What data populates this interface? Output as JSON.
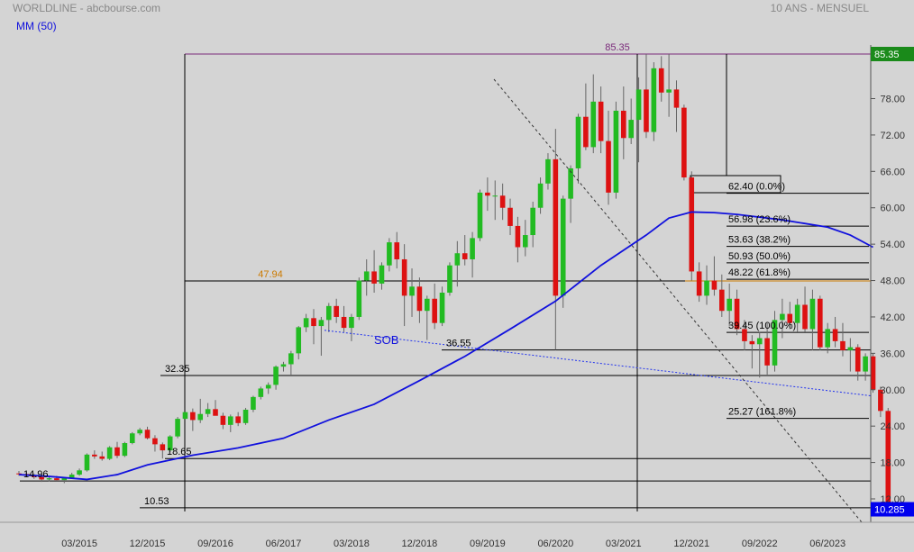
{
  "header": {
    "title": "WORLDLINE - abcbourse.com",
    "period": "10 ANS - MENSUEL",
    "indicator": "MM (50)"
  },
  "colors": {
    "background": "#d4d4d4",
    "up_candle": "#22bb22",
    "down_candle": "#dd1111",
    "moving_average": "#1111dd",
    "last_price_badge": "#0000ee",
    "high_badge": "#1a8a1a",
    "high_line": "#7a2a7a",
    "resistance_label": "#cc7a00"
  },
  "chart_data": {
    "type": "candlestick",
    "title": "WORLDLINE - abcbourse.com",
    "subtitle": "10 ANS - MENSUEL",
    "y_ticks": [
      "12.00",
      "18.00",
      "24.00",
      "30.00",
      "36.00",
      "42.00",
      "48.00",
      "54.00",
      "60.00",
      "66.00",
      "72.00",
      "78.00"
    ],
    "ylim": [
      10.0,
      87.0
    ],
    "x_ticks": [
      "03/2015",
      "12/2015",
      "09/2016",
      "06/2017",
      "03/2018",
      "12/2018",
      "09/2019",
      "06/2020",
      "03/2021",
      "12/2021",
      "09/2022",
      "06/2023"
    ],
    "x_start": "2014-07",
    "x_end": "2023-10",
    "last_price": "10.285",
    "high_price": "85.35",
    "candles": [
      {
        "d": "2014-07",
        "o": 16.2,
        "h": 16.6,
        "l": 15.8,
        "c": 16.1
      },
      {
        "d": "2014-08",
        "o": 16.1,
        "h": 16.4,
        "l": 15.7,
        "c": 15.9
      },
      {
        "d": "2014-09",
        "o": 15.9,
        "h": 16.2,
        "l": 15.3,
        "c": 15.6
      },
      {
        "d": "2014-10",
        "o": 15.6,
        "h": 15.9,
        "l": 14.8,
        "c": 15.2
      },
      {
        "d": "2014-11",
        "o": 15.2,
        "h": 15.6,
        "l": 14.9,
        "c": 15.4
      },
      {
        "d": "2014-12",
        "o": 15.4,
        "h": 15.8,
        "l": 14.96,
        "c": 15.1
      },
      {
        "d": "2015-01",
        "o": 15.1,
        "h": 15.6,
        "l": 14.6,
        "c": 15.5
      },
      {
        "d": "2015-02",
        "o": 15.5,
        "h": 16.3,
        "l": 15.3,
        "c": 16.0
      },
      {
        "d": "2015-03",
        "o": 16.0,
        "h": 17.0,
        "l": 15.8,
        "c": 16.7
      },
      {
        "d": "2015-04",
        "o": 16.7,
        "h": 19.5,
        "l": 16.5,
        "c": 19.3
      },
      {
        "d": "2015-05",
        "o": 19.3,
        "h": 20.0,
        "l": 18.6,
        "c": 19.0
      },
      {
        "d": "2015-06",
        "o": 19.0,
        "h": 19.8,
        "l": 18.3,
        "c": 18.6
      },
      {
        "d": "2015-07",
        "o": 18.6,
        "h": 20.7,
        "l": 18.4,
        "c": 20.5
      },
      {
        "d": "2015-08",
        "o": 20.5,
        "h": 21.4,
        "l": 18.7,
        "c": 19.1
      },
      {
        "d": "2015-09",
        "o": 19.1,
        "h": 21.4,
        "l": 18.9,
        "c": 21.2
      },
      {
        "d": "2015-10",
        "o": 21.2,
        "h": 23.0,
        "l": 21.0,
        "c": 22.8
      },
      {
        "d": "2015-11",
        "o": 22.8,
        "h": 23.7,
        "l": 22.5,
        "c": 23.4
      },
      {
        "d": "2015-12",
        "o": 23.4,
        "h": 23.9,
        "l": 21.8,
        "c": 22.0
      },
      {
        "d": "2016-01",
        "o": 22.0,
        "h": 22.5,
        "l": 19.8,
        "c": 21.0
      },
      {
        "d": "2016-02",
        "o": 21.0,
        "h": 21.3,
        "l": 18.65,
        "c": 20.0
      },
      {
        "d": "2016-03",
        "o": 20.0,
        "h": 22.5,
        "l": 19.7,
        "c": 22.3
      },
      {
        "d": "2016-04",
        "o": 22.3,
        "h": 25.5,
        "l": 22.0,
        "c": 25.2
      },
      {
        "d": "2016-05",
        "o": 25.2,
        "h": 27.0,
        "l": 24.8,
        "c": 26.3
      },
      {
        "d": "2016-06",
        "o": 26.3,
        "h": 26.9,
        "l": 23.2,
        "c": 25.0
      },
      {
        "d": "2016-07",
        "o": 25.0,
        "h": 28.5,
        "l": 24.5,
        "c": 26.0
      },
      {
        "d": "2016-08",
        "o": 26.0,
        "h": 27.8,
        "l": 25.5,
        "c": 26.8
      },
      {
        "d": "2016-09",
        "o": 26.8,
        "h": 28.3,
        "l": 26.0,
        "c": 25.7
      },
      {
        "d": "2016-10",
        "o": 25.7,
        "h": 26.2,
        "l": 23.5,
        "c": 24.2
      },
      {
        "d": "2016-11",
        "o": 24.2,
        "h": 25.9,
        "l": 23.0,
        "c": 25.6
      },
      {
        "d": "2016-12",
        "o": 25.6,
        "h": 26.3,
        "l": 24.0,
        "c": 24.5
      },
      {
        "d": "2017-01",
        "o": 24.5,
        "h": 27.0,
        "l": 24.2,
        "c": 26.7
      },
      {
        "d": "2017-02",
        "o": 26.7,
        "h": 29.0,
        "l": 26.3,
        "c": 28.8
      },
      {
        "d": "2017-03",
        "o": 28.8,
        "h": 30.5,
        "l": 28.4,
        "c": 30.2
      },
      {
        "d": "2017-04",
        "o": 30.2,
        "h": 31.2,
        "l": 29.3,
        "c": 30.8
      },
      {
        "d": "2017-05",
        "o": 30.8,
        "h": 34.0,
        "l": 30.0,
        "c": 33.8
      },
      {
        "d": "2017-06",
        "o": 33.8,
        "h": 34.6,
        "l": 33.0,
        "c": 34.2
      },
      {
        "d": "2017-07",
        "o": 34.2,
        "h": 36.4,
        "l": 32.35,
        "c": 36.0
      },
      {
        "d": "2017-08",
        "o": 36.0,
        "h": 40.5,
        "l": 35.0,
        "c": 40.3
      },
      {
        "d": "2017-09",
        "o": 40.3,
        "h": 42.5,
        "l": 39.5,
        "c": 41.8
      },
      {
        "d": "2017-10",
        "o": 41.8,
        "h": 43.3,
        "l": 37.5,
        "c": 40.5
      },
      {
        "d": "2017-11",
        "o": 40.5,
        "h": 42.0,
        "l": 35.6,
        "c": 41.5
      },
      {
        "d": "2017-12",
        "o": 41.5,
        "h": 44.3,
        "l": 39.5,
        "c": 43.8
      },
      {
        "d": "2018-01",
        "o": 43.8,
        "h": 45.0,
        "l": 41.0,
        "c": 42.0
      },
      {
        "d": "2018-02",
        "o": 42.0,
        "h": 43.8,
        "l": 39.5,
        "c": 40.2
      },
      {
        "d": "2018-03",
        "o": 40.2,
        "h": 42.5,
        "l": 38.0,
        "c": 42.0
      },
      {
        "d": "2018-04",
        "o": 42.0,
        "h": 48.5,
        "l": 41.5,
        "c": 48.0
      },
      {
        "d": "2018-05",
        "o": 48.0,
        "h": 51.5,
        "l": 45.5,
        "c": 49.5
      },
      {
        "d": "2018-06",
        "o": 49.5,
        "h": 53.0,
        "l": 46.0,
        "c": 47.5
      },
      {
        "d": "2018-07",
        "o": 47.5,
        "h": 51.0,
        "l": 46.5,
        "c": 50.5
      },
      {
        "d": "2018-08",
        "o": 50.5,
        "h": 55.0,
        "l": 49.5,
        "c": 54.3
      },
      {
        "d": "2018-09",
        "o": 54.3,
        "h": 56.0,
        "l": 50.0,
        "c": 51.5
      },
      {
        "d": "2018-10",
        "o": 51.5,
        "h": 54.0,
        "l": 40.5,
        "c": 45.5
      },
      {
        "d": "2018-11",
        "o": 45.5,
        "h": 50.0,
        "l": 42.0,
        "c": 47.0
      },
      {
        "d": "2018-12",
        "o": 47.0,
        "h": 48.5,
        "l": 41.0,
        "c": 43.0
      },
      {
        "d": "2019-01",
        "o": 43.0,
        "h": 45.5,
        "l": 38.2,
        "c": 45.0
      },
      {
        "d": "2019-02",
        "o": 45.0,
        "h": 47.5,
        "l": 40.0,
        "c": 41.0
      },
      {
        "d": "2019-03",
        "o": 41.0,
        "h": 47.0,
        "l": 40.5,
        "c": 46.0
      },
      {
        "d": "2019-04",
        "o": 46.0,
        "h": 51.0,
        "l": 45.5,
        "c": 50.5
      },
      {
        "d": "2019-05",
        "o": 50.5,
        "h": 54.5,
        "l": 47.0,
        "c": 52.5
      },
      {
        "d": "2019-06",
        "o": 52.5,
        "h": 55.5,
        "l": 50.5,
        "c": 51.5
      },
      {
        "d": "2019-07",
        "o": 51.5,
        "h": 56.0,
        "l": 48.5,
        "c": 55.0
      },
      {
        "d": "2019-08",
        "o": 55.0,
        "h": 63.0,
        "l": 54.5,
        "c": 62.5
      },
      {
        "d": "2019-09",
        "o": 62.5,
        "h": 65.0,
        "l": 59.5,
        "c": 62.0
      },
      {
        "d": "2019-10",
        "o": 62.0,
        "h": 64.5,
        "l": 58.0,
        "c": 62.0
      },
      {
        "d": "2019-11",
        "o": 62.0,
        "h": 64.0,
        "l": 58.0,
        "c": 60.0
      },
      {
        "d": "2019-12",
        "o": 60.0,
        "h": 61.5,
        "l": 55.5,
        "c": 57.0
      },
      {
        "d": "2020-01",
        "o": 57.0,
        "h": 58.5,
        "l": 51.0,
        "c": 53.5
      },
      {
        "d": "2020-02",
        "o": 53.5,
        "h": 58.0,
        "l": 52.0,
        "c": 55.5
      },
      {
        "d": "2020-03",
        "o": 55.5,
        "h": 61.0,
        "l": 53.5,
        "c": 60.0
      },
      {
        "d": "2020-04",
        "o": 60.0,
        "h": 65.0,
        "l": 59.0,
        "c": 64.0
      },
      {
        "d": "2020-05",
        "o": 64.0,
        "h": 69.0,
        "l": 63.0,
        "c": 68.0
      },
      {
        "d": "2020-06",
        "o": 68.0,
        "h": 73.0,
        "l": 36.55,
        "c": 45.5
      },
      {
        "d": "2020-07",
        "o": 45.5,
        "h": 62.0,
        "l": 43.5,
        "c": 61.5
      },
      {
        "d": "2020-08",
        "o": 61.5,
        "h": 67.0,
        "l": 57.5,
        "c": 66.5
      },
      {
        "d": "2020-09",
        "o": 66.5,
        "h": 75.5,
        "l": 64.0,
        "c": 75.0
      },
      {
        "d": "2020-10",
        "o": 75.0,
        "h": 80.5,
        "l": 69.5,
        "c": 70.0
      },
      {
        "d": "2020-11",
        "o": 70.0,
        "h": 82.0,
        "l": 69.0,
        "c": 77.5
      },
      {
        "d": "2020-12",
        "o": 77.5,
        "h": 80.0,
        "l": 69.0,
        "c": 71.0
      },
      {
        "d": "2021-01",
        "o": 71.0,
        "h": 76.0,
        "l": 60.5,
        "c": 62.5
      },
      {
        "d": "2021-02",
        "o": 62.5,
        "h": 77.5,
        "l": 61.5,
        "c": 76.0
      },
      {
        "d": "2021-03",
        "o": 76.0,
        "h": 80.0,
        "l": 68.0,
        "c": 71.5
      },
      {
        "d": "2021-04",
        "o": 71.5,
        "h": 78.0,
        "l": 70.5,
        "c": 74.5
      },
      {
        "d": "2021-05",
        "o": 74.5,
        "h": 81.5,
        "l": 67.5,
        "c": 79.5
      },
      {
        "d": "2021-06",
        "o": 79.5,
        "h": 85.35,
        "l": 71.5,
        "c": 72.5
      },
      {
        "d": "2021-07",
        "o": 72.5,
        "h": 84.0,
        "l": 71.0,
        "c": 83.0
      },
      {
        "d": "2021-08",
        "o": 83.0,
        "h": 85.0,
        "l": 77.5,
        "c": 79.0
      },
      {
        "d": "2021-09",
        "o": 79.0,
        "h": 85.35,
        "l": 75.0,
        "c": 79.5
      },
      {
        "d": "2021-10",
        "o": 79.5,
        "h": 81.0,
        "l": 72.5,
        "c": 76.5
      },
      {
        "d": "2021-11",
        "o": 76.5,
        "h": 77.0,
        "l": 64.5,
        "c": 65.0
      },
      {
        "d": "2021-12",
        "o": 65.0,
        "h": 66.0,
        "l": 48.0,
        "c": 49.5
      },
      {
        "d": "2022-01",
        "o": 49.5,
        "h": 51.0,
        "l": 44.5,
        "c": 45.5
      },
      {
        "d": "2022-02",
        "o": 45.5,
        "h": 50.5,
        "l": 44.0,
        "c": 48.0
      },
      {
        "d": "2022-03",
        "o": 48.0,
        "h": 52.0,
        "l": 45.5,
        "c": 46.5
      },
      {
        "d": "2022-04",
        "o": 46.5,
        "h": 49.0,
        "l": 42.0,
        "c": 43.0
      },
      {
        "d": "2022-05",
        "o": 43.0,
        "h": 47.5,
        "l": 40.5,
        "c": 45.0
      },
      {
        "d": "2022-06",
        "o": 45.0,
        "h": 46.5,
        "l": 39.0,
        "c": 40.0
      },
      {
        "d": "2022-07",
        "o": 40.0,
        "h": 41.5,
        "l": 36.5,
        "c": 38.0
      },
      {
        "d": "2022-08",
        "o": 38.0,
        "h": 39.0,
        "l": 33.5,
        "c": 37.5
      },
      {
        "d": "2022-09",
        "o": 37.5,
        "h": 39.5,
        "l": 32.0,
        "c": 38.5
      },
      {
        "d": "2022-10",
        "o": 38.5,
        "h": 41.0,
        "l": 32.5,
        "c": 34.0
      },
      {
        "d": "2022-11",
        "o": 34.0,
        "h": 43.0,
        "l": 33.0,
        "c": 41.5
      },
      {
        "d": "2022-12",
        "o": 41.5,
        "h": 45.0,
        "l": 38.5,
        "c": 42.5
      },
      {
        "d": "2023-01",
        "o": 42.5,
        "h": 44.5,
        "l": 40.0,
        "c": 41.0
      },
      {
        "d": "2023-02",
        "o": 41.0,
        "h": 45.0,
        "l": 39.5,
        "c": 44.0
      },
      {
        "d": "2023-03",
        "o": 44.0,
        "h": 47.0,
        "l": 39.5,
        "c": 40.0
      },
      {
        "d": "2023-04",
        "o": 40.0,
        "h": 46.5,
        "l": 36.5,
        "c": 45.0
      },
      {
        "d": "2023-05",
        "o": 45.0,
        "h": 45.5,
        "l": 36.5,
        "c": 37.0
      },
      {
        "d": "2023-06",
        "o": 37.0,
        "h": 41.0,
        "l": 36.0,
        "c": 40.0
      },
      {
        "d": "2023-07",
        "o": 40.0,
        "h": 42.0,
        "l": 37.0,
        "c": 38.0
      },
      {
        "d": "2023-08",
        "o": 38.0,
        "h": 41.0,
        "l": 35.5,
        "c": 36.5
      },
      {
        "d": "2023-09",
        "o": 36.5,
        "h": 38.5,
        "l": 33.0,
        "c": 37.0
      },
      {
        "d": "2023-10",
        "o": 37.0,
        "h": 37.5,
        "l": 31.5,
        "c": 33.0
      },
      {
        "d": "2023-11",
        "o": 33.0,
        "h": 36.0,
        "l": 31.5,
        "c": 35.5
      },
      {
        "d": "2023-12",
        "o": 35.5,
        "h": 36.0,
        "l": 29.5,
        "c": 30.0
      },
      {
        "d": "2024-01",
        "o": 30.0,
        "h": 30.5,
        "l": 25.5,
        "c": 26.5
      },
      {
        "d": "2024-02",
        "o": 26.5,
        "h": 27.0,
        "l": 10.285,
        "c": 10.285
      }
    ],
    "moving_average_50": [
      [
        "2014-07",
        16.0
      ],
      [
        "2014-11",
        15.7
      ],
      [
        "2015-04",
        15.2
      ],
      [
        "2015-08",
        16.0
      ],
      [
        "2015-12",
        17.6
      ],
      [
        "2016-06",
        19.2
      ],
      [
        "2016-12",
        20.4
      ],
      [
        "2017-06",
        22.0
      ],
      [
        "2017-12",
        25.0
      ],
      [
        "2018-06",
        27.6
      ],
      [
        "2018-12",
        31.5
      ],
      [
        "2019-06",
        35.5
      ],
      [
        "2019-12",
        40.0
      ],
      [
        "2020-06",
        44.6
      ],
      [
        "2020-12",
        50.5
      ],
      [
        "2021-06",
        55.5
      ],
      [
        "2021-09",
        58.3
      ],
      [
        "2021-12",
        59.3
      ],
      [
        "2022-03",
        59.2
      ],
      [
        "2022-06",
        58.9
      ],
      [
        "2022-12",
        58.0
      ],
      [
        "2023-06",
        56.8
      ],
      [
        "2023-09",
        55.5
      ],
      [
        "2023-12",
        53.5
      ]
    ],
    "horizontal_levels": [
      {
        "label": "85.35",
        "value": 85.35
      },
      {
        "label": "47.94",
        "value": 47.94
      },
      {
        "label": "36.55",
        "value": 36.55
      },
      {
        "label": "32.35",
        "value": 32.35
      },
      {
        "label": "18.65",
        "value": 18.65
      },
      {
        "label": "14.96",
        "value": 14.96
      },
      {
        "label": "10.53",
        "value": 10.53
      }
    ],
    "fibonacci_levels": [
      {
        "label": "62.40  (0.0%)",
        "value": 62.4
      },
      {
        "label": "56.98  (23.6%)",
        "value": 56.98
      },
      {
        "label": "53.63  (38.2%)",
        "value": 53.63
      },
      {
        "label": "50.93  (50.0%)",
        "value": 50.93
      },
      {
        "label": "48.22  (61.8%)",
        "value": 48.22
      },
      {
        "label": "39.45  (100.0%)",
        "value": 39.45
      },
      {
        "label": "25.27  (161.8%)",
        "value": 25.27
      }
    ],
    "annotations": [
      "SOB"
    ]
  }
}
